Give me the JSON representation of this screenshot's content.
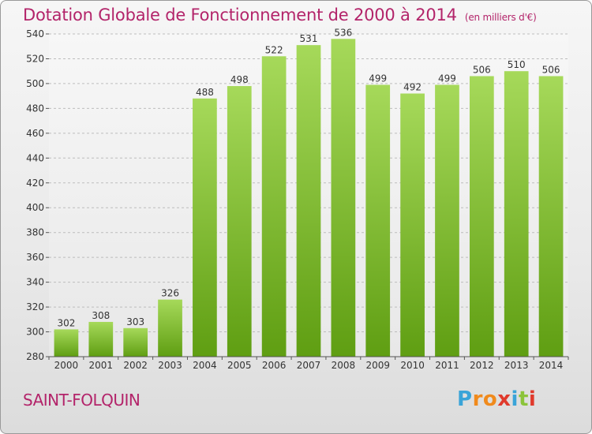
{
  "title": "Dotation Globale de Fonctionnement de 2000 à 2014",
  "subtitle": "(en milliers d'€)",
  "town": "SAINT-FOLQUIN",
  "logo": {
    "letters": [
      "P",
      "r",
      "o",
      "x",
      "i",
      "t",
      "i"
    ],
    "colors": [
      "#3aa4d8",
      "#f08a1c",
      "#f08a1c",
      "#e03a2c",
      "#3aa4d8",
      "#8bc43a",
      "#e03a2c"
    ]
  },
  "colors": {
    "accent": "#b3246a",
    "bar_light": "#a6d95a",
    "bar_dark": "#5f9e12",
    "grid": "#bdbdbd"
  },
  "chart_data": {
    "type": "bar",
    "title": "Dotation Globale de Fonctionnement de 2000 à 2014",
    "xlabel": "",
    "ylabel": "(en milliers d'€)",
    "ylim": [
      280,
      540
    ],
    "yticks": [
      280,
      300,
      320,
      340,
      360,
      380,
      400,
      420,
      440,
      460,
      480,
      500,
      520,
      540
    ],
    "categories": [
      "2000",
      "2001",
      "2002",
      "2003",
      "2004",
      "2005",
      "2006",
      "2007",
      "2008",
      "2009",
      "2010",
      "2011",
      "2012",
      "2013",
      "2014"
    ],
    "values": [
      302,
      308,
      303,
      326,
      488,
      498,
      522,
      531,
      536,
      499,
      492,
      499,
      506,
      510,
      506
    ],
    "grid": true
  }
}
